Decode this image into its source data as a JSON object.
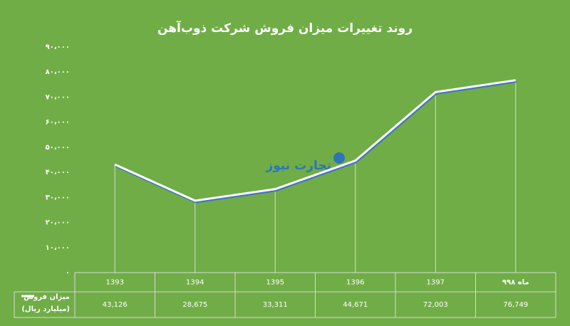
{
  "chart_data": {
    "type": "line",
    "title": "روند تغییرات میزان فروش شرکت ذوب‌آهن",
    "watermark": "تجارت نیوز",
    "categories": [
      "1393",
      "1394",
      "1395",
      "1396",
      "1397",
      "۹ماه ۹۸"
    ],
    "series": [
      {
        "name": "میزان فروش",
        "color": "#ffffff",
        "values": [
          43126,
          28675,
          33311,
          44671,
          72003,
          76749
        ],
        "value_labels": [
          "43,126",
          "28,675",
          "33,311",
          "44,671",
          "72,003",
          "76,749"
        ]
      }
    ],
    "unit_label": "(میلیارد ریال)",
    "ylim": [
      0,
      90000
    ],
    "yticks": [
      {
        "value": 0,
        "label": "۰"
      },
      {
        "value": 10000,
        "label": "۱۰،۰۰۰"
      },
      {
        "value": 20000,
        "label": "۲۰،۰۰۰"
      },
      {
        "value": 30000,
        "label": "۳۰،۰۰۰"
      },
      {
        "value": 40000,
        "label": "۴۰،۰۰۰"
      },
      {
        "value": 50000,
        "label": "۵۰،۰۰۰"
      },
      {
        "value": 60000,
        "label": "۶۰،۰۰۰"
      },
      {
        "value": 70000,
        "label": "۷۰،۰۰۰"
      },
      {
        "value": 80000,
        "label": "۸۰،۰۰۰"
      },
      {
        "value": 90000,
        "label": "۹۰،۰۰۰"
      }
    ],
    "drop_lines": true
  }
}
